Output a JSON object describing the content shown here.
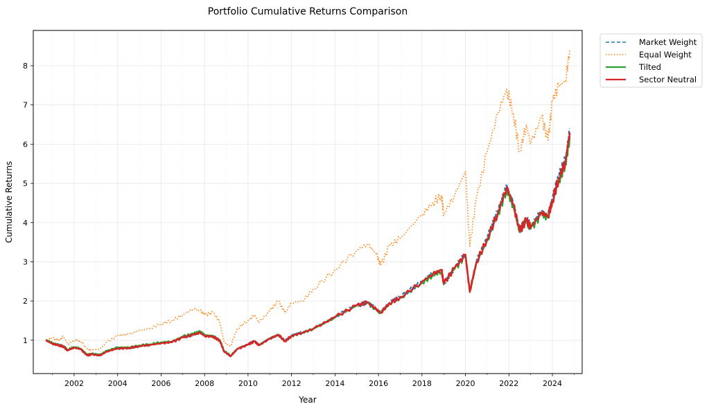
{
  "chart_data": {
    "type": "line",
    "title": "Portfolio Cumulative Returns Comparison",
    "xlabel": "Year",
    "ylabel": "Cumulative Returns",
    "xlim": [
      2000.12,
      2025.37
    ],
    "ylim": [
      0.15,
      8.9
    ],
    "xticks": [
      2002,
      2004,
      2006,
      2008,
      2010,
      2012,
      2014,
      2016,
      2018,
      2020,
      2022,
      2024
    ],
    "xtick_labels": [
      "2002",
      "2004",
      "2006",
      "2008",
      "2010",
      "2012",
      "2014",
      "2016",
      "2018",
      "2020",
      "2022",
      "2024"
    ],
    "yticks": [
      1,
      2,
      3,
      4,
      5,
      6,
      7,
      8
    ],
    "ytick_labels": [
      "1",
      "2",
      "3",
      "4",
      "5",
      "6",
      "7",
      "8"
    ],
    "grid": true,
    "legend_placement": "outside-top-right",
    "x": [
      2000.7,
      2001.0,
      2001.3,
      2001.5,
      2001.7,
      2002.0,
      2002.3,
      2002.6,
      2002.8,
      2003.2,
      2003.5,
      2004.0,
      2004.5,
      2005.0,
      2005.5,
      2006.0,
      2006.5,
      2007.0,
      2007.5,
      2007.8,
      2008.0,
      2008.4,
      2008.7,
      2008.9,
      2009.2,
      2009.5,
      2010.0,
      2010.3,
      2010.5,
      2011.0,
      2011.4,
      2011.7,
      2012.0,
      2012.5,
      2013.0,
      2014.0,
      2015.0,
      2015.5,
      2015.9,
      2016.1,
      2016.5,
      2017.0,
      2018.0,
      2018.5,
      2018.9,
      2019.0,
      2019.5,
      2020.0,
      2020.2,
      2020.5,
      2021.0,
      2021.5,
      2021.9,
      2022.2,
      2022.5,
      2022.8,
      2023.0,
      2023.5,
      2023.8,
      2024.0,
      2024.3,
      2024.6,
      2024.8
    ],
    "series": [
      {
        "name": "Market Weight",
        "color": "#1f77b4",
        "style": "dashed",
        "values": [
          1.0,
          0.92,
          0.88,
          0.85,
          0.75,
          0.82,
          0.78,
          0.62,
          0.65,
          0.62,
          0.72,
          0.8,
          0.8,
          0.85,
          0.88,
          0.93,
          0.95,
          1.08,
          1.15,
          1.2,
          1.12,
          1.1,
          1.0,
          0.72,
          0.6,
          0.78,
          0.9,
          0.98,
          0.88,
          1.05,
          1.15,
          0.98,
          1.12,
          1.2,
          1.3,
          1.6,
          1.9,
          1.97,
          1.8,
          1.7,
          1.95,
          2.1,
          2.5,
          2.7,
          2.8,
          2.45,
          2.85,
          3.2,
          2.25,
          3.0,
          3.6,
          4.3,
          4.95,
          4.5,
          3.8,
          4.1,
          3.9,
          4.3,
          4.2,
          4.6,
          5.2,
          5.6,
          6.4
        ]
      },
      {
        "name": "Equal Weight",
        "color": "#ff7f0e",
        "style": "dotted",
        "values": [
          1.0,
          1.05,
          1.0,
          1.1,
          0.9,
          1.0,
          0.98,
          0.78,
          0.75,
          0.78,
          0.95,
          1.12,
          1.15,
          1.25,
          1.3,
          1.42,
          1.5,
          1.65,
          1.8,
          1.75,
          1.65,
          1.7,
          1.45,
          0.95,
          0.85,
          1.3,
          1.5,
          1.65,
          1.45,
          1.75,
          2.0,
          1.7,
          1.95,
          2.0,
          2.3,
          2.8,
          3.3,
          3.45,
          3.2,
          2.9,
          3.4,
          3.6,
          4.2,
          4.5,
          4.7,
          4.2,
          4.7,
          5.3,
          3.4,
          4.6,
          5.8,
          6.8,
          7.4,
          6.8,
          5.8,
          6.5,
          6.0,
          6.7,
          6.1,
          7.1,
          7.5,
          7.6,
          8.4
        ]
      },
      {
        "name": "Tilted",
        "color": "#2ca02c",
        "style": "solid",
        "values": [
          1.0,
          0.93,
          0.89,
          0.86,
          0.76,
          0.83,
          0.79,
          0.64,
          0.66,
          0.63,
          0.73,
          0.82,
          0.82,
          0.87,
          0.9,
          0.95,
          0.97,
          1.1,
          1.17,
          1.22,
          1.13,
          1.11,
          1.01,
          0.73,
          0.61,
          0.78,
          0.89,
          0.97,
          0.87,
          1.04,
          1.14,
          0.97,
          1.11,
          1.19,
          1.29,
          1.58,
          1.88,
          1.95,
          1.78,
          1.69,
          1.93,
          2.08,
          2.47,
          2.66,
          2.76,
          2.42,
          2.81,
          3.15,
          2.22,
          2.95,
          3.54,
          4.22,
          4.85,
          4.42,
          3.75,
          4.03,
          3.84,
          4.22,
          4.12,
          4.5,
          5.08,
          5.48,
          6.2
        ]
      },
      {
        "name": "Sector Neutral",
        "color": "#d62728",
        "style": "solid",
        "values": [
          1.0,
          0.91,
          0.87,
          0.84,
          0.74,
          0.81,
          0.77,
          0.61,
          0.64,
          0.61,
          0.71,
          0.79,
          0.8,
          0.85,
          0.88,
          0.92,
          0.95,
          1.07,
          1.14,
          1.19,
          1.11,
          1.09,
          0.99,
          0.71,
          0.59,
          0.77,
          0.89,
          0.97,
          0.87,
          1.04,
          1.14,
          0.97,
          1.11,
          1.19,
          1.29,
          1.59,
          1.89,
          1.96,
          1.79,
          1.7,
          1.94,
          2.09,
          2.49,
          2.69,
          2.79,
          2.44,
          2.84,
          3.18,
          2.24,
          2.98,
          3.58,
          4.27,
          4.9,
          4.46,
          3.78,
          4.07,
          3.87,
          4.26,
          4.16,
          4.55,
          5.14,
          5.55,
          6.3
        ]
      }
    ]
  }
}
